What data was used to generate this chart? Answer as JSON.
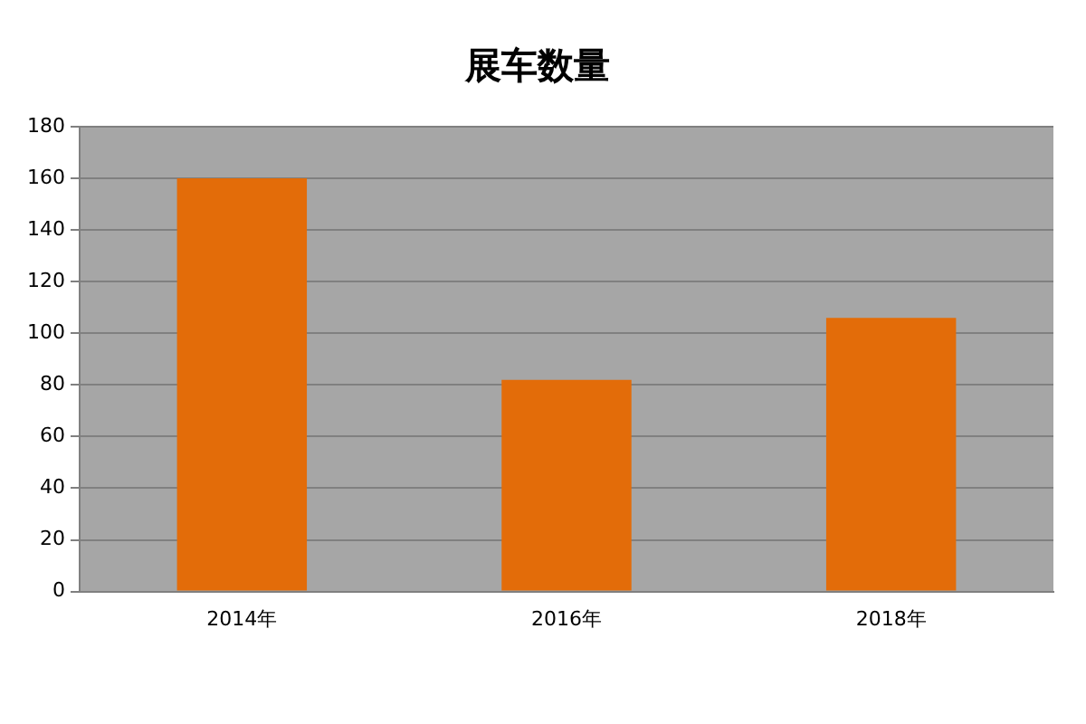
{
  "chart_data": {
    "type": "bar",
    "title": "展车数量",
    "categories": [
      "2014年",
      "2016年",
      "2018年"
    ],
    "values": [
      160,
      82,
      106
    ],
    "color": "#e36c09",
    "ylim": [
      0,
      180
    ],
    "yticks": [
      0,
      20,
      40,
      60,
      80,
      100,
      120,
      140,
      160,
      180
    ],
    "grid": "y",
    "legend": false
  }
}
